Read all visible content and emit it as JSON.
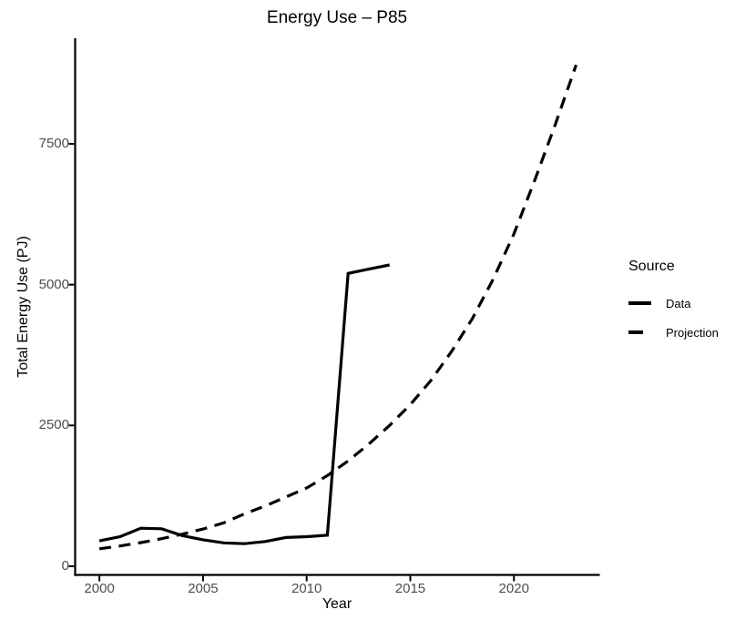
{
  "chart_data": {
    "type": "line",
    "title": "Energy Use – P85",
    "xlabel": "Year",
    "ylabel": "Total Energy Use (PJ)",
    "legend": {
      "title": "Source",
      "position": "right"
    },
    "grid": false,
    "xlim": [
      1998.83,
      2024.12
    ],
    "ylim": [
      -154,
      9375
    ],
    "xticks": [
      2000,
      2005,
      2010,
      2015,
      2020
    ],
    "yticks": [
      0,
      2500,
      5000,
      7500
    ],
    "colors": {
      "series": "#000000",
      "axis": "#000000",
      "tick_labels": "#4D4D4D",
      "background": "#FFFFFF"
    },
    "series": [
      {
        "name": "Data",
        "style": "solid",
        "x": [
          2000,
          2001,
          2002,
          2003,
          2004,
          2005,
          2006,
          2007,
          2008,
          2009,
          2010,
          2011,
          2012,
          2013,
          2014
        ],
        "y": [
          450,
          525,
          675,
          665,
          545,
          470,
          415,
          400,
          440,
          510,
          525,
          550,
          5200,
          5275,
          5350
        ]
      },
      {
        "name": "Projection",
        "style": "dashed",
        "x": [
          2000,
          2001,
          2002,
          2003,
          2004,
          2005,
          2006,
          2007,
          2008,
          2009,
          2010,
          2011,
          2012,
          2013,
          2014,
          2015,
          2016,
          2017,
          2018,
          2019,
          2020,
          2021,
          2022,
          2023
        ],
        "y": [
          310,
          360,
          420,
          490,
          570,
          660,
          770,
          930,
          1070,
          1230,
          1390,
          1610,
          1870,
          2170,
          2500,
          2870,
          3300,
          3820,
          4400,
          5100,
          5900,
          6850,
          7850,
          8900
        ]
      }
    ]
  }
}
